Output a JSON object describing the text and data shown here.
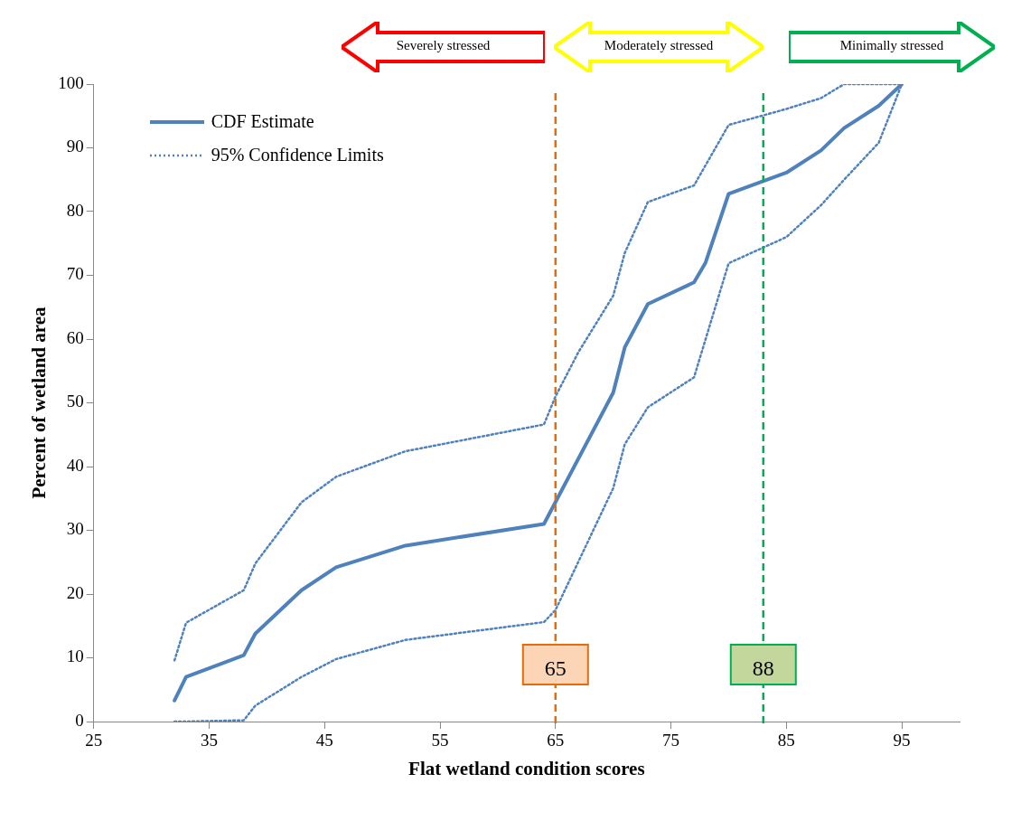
{
  "chart_data": {
    "type": "line",
    "xlabel": "Flat wetland condition scores",
    "ylabel": "Percent of wetland area",
    "xlim": [
      25,
      100
    ],
    "xticks": [
      25,
      35,
      45,
      55,
      65,
      75,
      85,
      95
    ],
    "ylim": [
      0,
      100
    ],
    "yticks": [
      0,
      10,
      20,
      30,
      40,
      50,
      60,
      70,
      80,
      90,
      100
    ],
    "grid": false,
    "legend": "top left",
    "marker": "none",
    "series": [
      {
        "name": "CDF Estimate",
        "color": "#4f81bd",
        "line_style": "solid",
        "x": [
          32,
          33,
          38,
          39,
          43,
          46,
          52,
          64,
          70,
          71,
          73,
          77,
          78,
          80,
          85,
          88,
          90,
          93,
          95
        ],
        "values": [
          3.3,
          7,
          10.4,
          13.8,
          20.6,
          24.2,
          27.6,
          31,
          51.6,
          58.7,
          65.5,
          68.9,
          72,
          82.8,
          86.1,
          89.6,
          93.1,
          96.6,
          100
        ]
      },
      {
        "name": "95% Confidence Limits",
        "color": "#4f81bd",
        "line_style": "dotted",
        "x": [
          32,
          33,
          38,
          39,
          43,
          46,
          52,
          64,
          65,
          67,
          70,
          71,
          73,
          77,
          80,
          85,
          88,
          90,
          95
        ],
        "values": [
          9.6,
          15.5,
          20.6,
          24.8,
          34.4,
          38.4,
          42.4,
          46.6,
          51,
          58,
          66.8,
          73.5,
          81.5,
          84.1,
          93.6,
          96.1,
          97.8,
          100,
          100
        ]
      },
      {
        "color": "#4f81bd",
        "line_style": "dotted",
        "x": [
          32,
          33,
          38,
          39,
          43,
          46,
          52,
          64,
          65,
          70,
          71,
          73,
          77,
          80,
          85,
          88,
          90,
          93,
          95
        ],
        "values": [
          0,
          0,
          0.2,
          2.5,
          7,
          9.8,
          12.8,
          15.6,
          17.5,
          36.6,
          43.5,
          49.3,
          54,
          71.9,
          76,
          81,
          85,
          90.8,
          100
        ]
      }
    ],
    "ref_lines": [
      {
        "axis": "x",
        "value": 65,
        "label": "65",
        "color": "#e46c0a",
        "line_style": "dashed"
      },
      {
        "axis": "x",
        "value": 83,
        "color": "#00b050",
        "line_style": "dashed"
      }
    ],
    "annotations": [
      "Severely stressed",
      "Moderately stressed",
      "Minimally stressed",
      "88"
    ]
  }
}
